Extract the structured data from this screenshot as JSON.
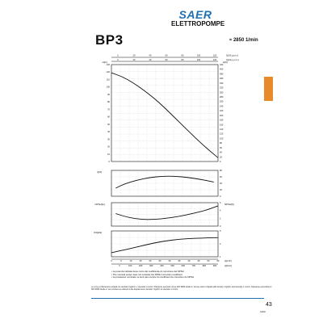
{
  "header": {
    "brand": "SAER",
    "brand_sub": "ELETTROPOMPE",
    "model": "BP3",
    "speed": "≈ 2850 1/min"
  },
  "colors": {
    "brand_blue": "#1f6fb2",
    "tab_orange": "#e88a2a",
    "grid": "#cfcfcf",
    "curve": "#111111"
  },
  "chart_data": [
    {
      "type": "line",
      "name": "head",
      "ylabel": "H[m]",
      "ylabel2": "H[ft]",
      "x": [
        0,
        25,
        50,
        75,
        100,
        125,
        150,
        175,
        200,
        225,
        250
      ],
      "values": [
        119,
        114,
        106,
        96,
        85,
        72,
        58,
        44,
        30,
        17,
        5
      ],
      "xlim": [
        0,
        250
      ],
      "ylim": [
        0,
        130
      ],
      "yticks_left": [
        130,
        120,
        110,
        100,
        90,
        80,
        70,
        60,
        50,
        40,
        30,
        20,
        10,
        0
      ],
      "yticks_right": [
        420,
        400,
        380,
        360,
        340,
        320,
        300,
        280,
        260,
        240,
        220,
        200,
        180,
        160,
        140,
        120,
        100,
        80,
        60,
        40,
        20,
        0
      ],
      "top_axis1_label": "Q[US g.p.m.]",
      "top_axis1_ticks": [
        "0",
        "20",
        "40",
        "60",
        "80",
        "100",
        "120"
      ],
      "top_axis2_label": "Q[Imp g.p.m.]",
      "top_axis2_ticks": [
        "0",
        "20",
        "40",
        "60",
        "80",
        "100",
        "120"
      ]
    },
    {
      "type": "line",
      "name": "efficiency",
      "ylabel": "η[%]",
      "x": [
        10,
        30,
        60,
        90,
        120,
        150,
        180,
        210,
        240
      ],
      "values": [
        25,
        38,
        50,
        58,
        62,
        62,
        58,
        52,
        44
      ],
      "xlim": [
        0,
        250
      ],
      "ylim": [
        0,
        80
      ],
      "yticks": [
        80,
        60,
        40,
        20,
        0
      ]
    },
    {
      "type": "line",
      "name": "npsh",
      "ylabel": "NPSH[m]",
      "ylabel2": "NPSH[ft]",
      "x": [
        10,
        40,
        70,
        100,
        130,
        160,
        190,
        220,
        250
      ],
      "values": [
        3.2,
        2.2,
        1.7,
        1.7,
        2.0,
        2.5,
        3.2,
        4.0,
        5.2
      ],
      "xlim": [
        0,
        250
      ],
      "ylim": [
        0,
        6
      ],
      "yticks": [
        6,
        4,
        2,
        0
      ]
    },
    {
      "type": "line",
      "name": "power",
      "ylabel": "P2[kW]",
      "x": [
        0,
        40,
        80,
        120,
        160,
        200,
        250
      ],
      "values": [
        0.8,
        1.5,
        2.3,
        3.0,
        3.4,
        3.6,
        3.7
      ],
      "xlim": [
        0,
        250
      ],
      "ylim": [
        0,
        5
      ],
      "yticks": [
        5,
        3,
        1
      ],
      "xlabel1": "Q[m³/h]",
      "xticks1": [
        "0",
        "5",
        "10",
        "15",
        "20",
        "25",
        "30",
        "35",
        "40",
        "45",
        "50",
        "55"
      ],
      "xlabel2": "Q[l/min]",
      "xticks2": [
        "0",
        "100",
        "200",
        "300",
        "400",
        "500",
        "600",
        "700",
        "800",
        "900"
      ]
    }
  ],
  "notes": [
    "• La potenza indicata tiene conto del coefficiente di correzione del NPSH",
    "• The nominal power does not consider the NPSH correction coefficient",
    "• La puissance nominale ne tient pas compte du coefficient de correction du NPSH"
  ],
  "footer_text": "Le curve si riferiscono a liquidi con densità 1 kg/dm³ e viscosità 1 mm²/s. Tolleranze secondo norme ISO 9906 Grado 2. Curves refer to liquids with density 1 kg/dm³ and viscosity 1 mm²/s. Tolerances according to ISO 9906 Grade 2. Les courbes se réfèrent à des liquides avec densité 1 kg/dm³ et viscosité 1 mm²/s.",
  "page_number": "43",
  "brand_small": "SAER"
}
